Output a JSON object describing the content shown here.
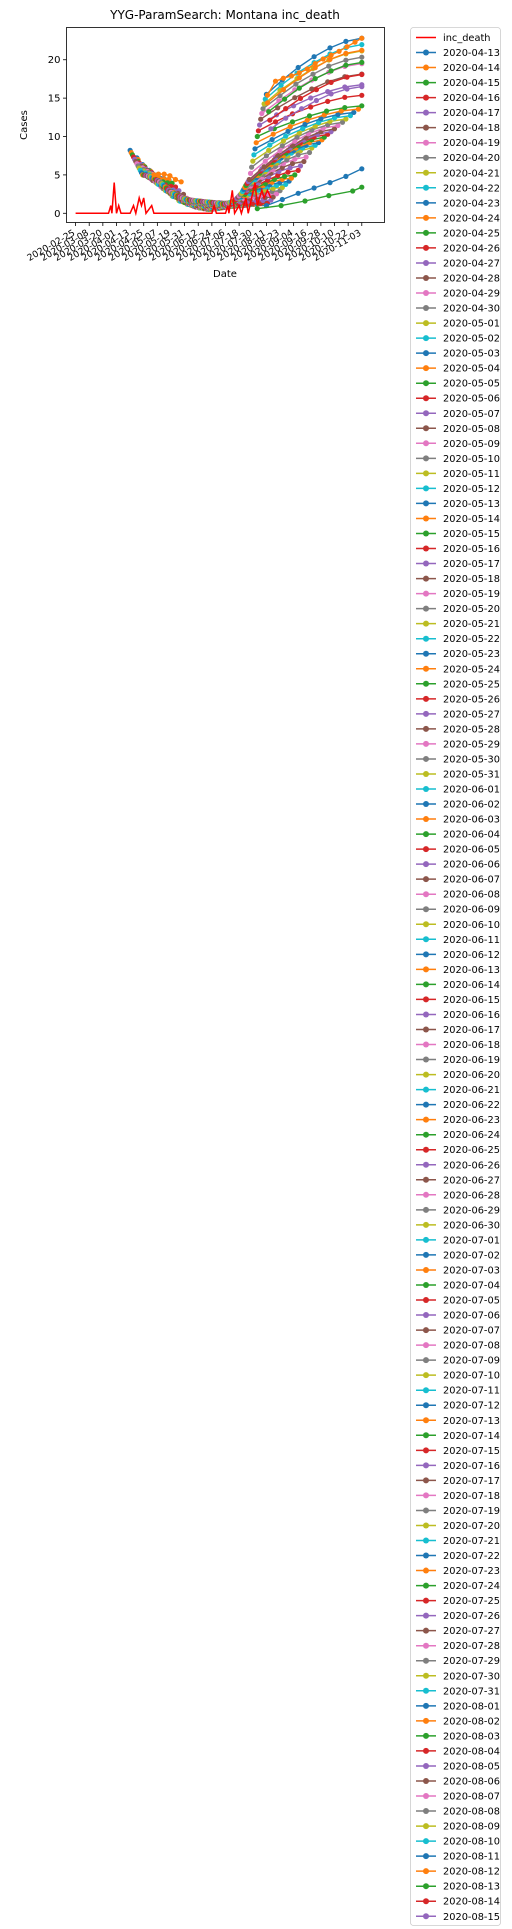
{
  "chart_data": {
    "type": "line",
    "title": "YYG-ParamSearch: Montana inc_death",
    "xlabel": "Date",
    "ylabel": "Cases",
    "ylim": [
      -1.2,
      24.2
    ],
    "yticks": [
      0,
      5,
      10,
      15,
      20
    ],
    "xlim": [
      "2020-02-17",
      "2020-11-23"
    ],
    "xticks": [
      "2020-02-25",
      "2020-03-08",
      "2020-03-20",
      "2020-04-01",
      "2020-04-13",
      "2020-04-25",
      "2020-05-07",
      "2020-05-19",
      "2020-05-31",
      "2020-06-12",
      "2020-06-24",
      "2020-07-06",
      "2020-07-18",
      "2020-07-30",
      "2020-08-11",
      "2020-08-23",
      "2020-09-04",
      "2020-09-16",
      "2020-09-28",
      "2020-10-10",
      "2020-10-22",
      "2020-11-03"
    ],
    "legend_placement": "outside-right",
    "grid": false,
    "palette": [
      "#1f77b4",
      "#ff7f0e",
      "#2ca02c",
      "#d62728",
      "#9467bd",
      "#8c564b",
      "#e377c2",
      "#7f7f7f",
      "#bcbd22",
      "#17becf"
    ],
    "observed": {
      "name": "inc_death",
      "color": "#ff0000",
      "points": [
        [
          "2020-02-25",
          0
        ],
        [
          "2020-03-25",
          0
        ],
        [
          "2020-03-27",
          1
        ],
        [
          "2020-03-28",
          0
        ],
        [
          "2020-03-30",
          4
        ],
        [
          "2020-04-01",
          0
        ],
        [
          "2020-04-03",
          1
        ],
        [
          "2020-04-05",
          0
        ],
        [
          "2020-04-13",
          0
        ],
        [
          "2020-04-16",
          1
        ],
        [
          "2020-04-18",
          0
        ],
        [
          "2020-04-21",
          2
        ],
        [
          "2020-04-23",
          1
        ],
        [
          "2020-04-25",
          2
        ],
        [
          "2020-04-27",
          0
        ],
        [
          "2020-05-02",
          1
        ],
        [
          "2020-05-04",
          0
        ],
        [
          "2020-06-24",
          0
        ],
        [
          "2020-06-26",
          1
        ],
        [
          "2020-06-28",
          0
        ],
        [
          "2020-07-06",
          0
        ],
        [
          "2020-07-08",
          1
        ],
        [
          "2020-07-09",
          0
        ],
        [
          "2020-07-12",
          3
        ],
        [
          "2020-07-14",
          0
        ],
        [
          "2020-07-18",
          1
        ],
        [
          "2020-07-20",
          0
        ],
        [
          "2020-07-24",
          2
        ],
        [
          "2020-07-26",
          0
        ],
        [
          "2020-08-01",
          4
        ],
        [
          "2020-08-03",
          1
        ],
        [
          "2020-08-07",
          3
        ],
        [
          "2020-08-09",
          2
        ],
        [
          "2020-08-12",
          3
        ],
        [
          "2020-08-15",
          2
        ]
      ]
    },
    "forecast_dates": [
      "2020-04-13",
      "2020-04-14",
      "2020-04-15",
      "2020-04-16",
      "2020-04-17",
      "2020-04-18",
      "2020-04-19",
      "2020-04-20",
      "2020-04-21",
      "2020-04-22",
      "2020-04-23",
      "2020-04-24",
      "2020-04-25",
      "2020-04-26",
      "2020-04-27",
      "2020-04-28",
      "2020-04-29",
      "2020-04-30",
      "2020-05-01",
      "2020-05-02",
      "2020-05-03",
      "2020-05-04",
      "2020-05-05",
      "2020-05-06",
      "2020-05-07",
      "2020-05-08",
      "2020-05-09",
      "2020-05-10",
      "2020-05-11",
      "2020-05-12",
      "2020-05-13",
      "2020-05-14",
      "2020-05-15",
      "2020-05-16",
      "2020-05-17",
      "2020-05-18",
      "2020-05-19",
      "2020-05-20",
      "2020-05-21",
      "2020-05-22",
      "2020-05-23",
      "2020-05-24",
      "2020-05-25",
      "2020-05-26",
      "2020-05-27",
      "2020-05-28",
      "2020-05-29",
      "2020-05-30",
      "2020-05-31",
      "2020-06-01",
      "2020-06-02",
      "2020-06-03",
      "2020-06-04",
      "2020-06-05",
      "2020-06-06",
      "2020-06-07",
      "2020-06-08",
      "2020-06-09",
      "2020-06-10",
      "2020-06-11",
      "2020-06-12",
      "2020-06-13",
      "2020-06-14",
      "2020-06-15",
      "2020-06-16",
      "2020-06-17",
      "2020-06-18",
      "2020-06-19",
      "2020-06-20",
      "2020-06-21",
      "2020-06-22",
      "2020-06-23",
      "2020-06-24",
      "2020-06-25",
      "2020-06-26",
      "2020-06-27",
      "2020-06-28",
      "2020-06-29",
      "2020-06-30",
      "2020-07-01",
      "2020-07-02",
      "2020-07-03",
      "2020-07-04",
      "2020-07-05",
      "2020-07-06",
      "2020-07-07",
      "2020-07-08",
      "2020-07-09",
      "2020-07-10",
      "2020-07-11",
      "2020-07-12",
      "2020-07-13",
      "2020-07-14",
      "2020-07-15",
      "2020-07-16",
      "2020-07-17",
      "2020-07-18",
      "2020-07-19",
      "2020-07-20",
      "2020-07-21",
      "2020-07-22",
      "2020-07-23",
      "2020-07-24",
      "2020-07-25",
      "2020-07-26",
      "2020-07-27",
      "2020-07-28",
      "2020-07-29",
      "2020-07-30",
      "2020-07-31",
      "2020-08-01",
      "2020-08-02",
      "2020-08-03",
      "2020-08-04",
      "2020-08-05",
      "2020-08-06",
      "2020-08-07",
      "2020-08-08",
      "2020-08-09",
      "2020-08-10",
      "2020-08-11",
      "2020-08-12",
      "2020-08-13",
      "2020-08-14",
      "2020-08-15"
    ],
    "forecast_anchors": [
      [
        "2020-04-13",
        8.2,
        "2020-05-17",
        4.3
      ],
      [
        "2020-04-24",
        5.0,
        "2020-05-17",
        4.4
      ],
      [
        "2020-05-01",
        4.8,
        "2020-06-08",
        1.0
      ],
      [
        "2020-05-10",
        4.0,
        "2020-06-20",
        0.5
      ],
      [
        "2020-05-20",
        2.6,
        "2020-06-28",
        0.6
      ],
      [
        "2020-06-01",
        1.8,
        "2020-07-10",
        0.9
      ],
      [
        "2020-06-12",
        1.6,
        "2020-07-20",
        1.0
      ],
      [
        "2020-06-25",
        1.4,
        "2020-08-01",
        1.2
      ],
      [
        "2020-07-05",
        1.2,
        "2020-08-12",
        1.3
      ],
      [
        "2020-07-14",
        1.6,
        "2020-09-05",
        5.0
      ],
      [
        "2020-07-20",
        2.6,
        "2020-09-20",
        8.5
      ],
      [
        "2020-07-27",
        4.4,
        "2020-10-10",
        11.0
      ],
      [
        "2020-08-03",
        10.0,
        "2020-11-03",
        14.0
      ],
      [
        "2020-08-07",
        13.0,
        "2020-11-03",
        19.5
      ],
      [
        "2020-08-11",
        15.5,
        "2020-11-03",
        22.8
      ],
      [
        "2020-08-15",
        11.0,
        "2020-11-03",
        16.5
      ]
    ],
    "highlighted_forecasts": [
      {
        "date": "2020-08-12",
        "points": [
          [
            "2020-08-12",
            15.4
          ],
          [
            "2020-08-19",
            17.2
          ],
          [
            "2020-08-26",
            17.6
          ],
          [
            "2020-09-02",
            17.9
          ],
          [
            "2020-09-09",
            18.3
          ],
          [
            "2020-09-16",
            18.8
          ],
          [
            "2020-09-23",
            19.5
          ],
          [
            "2020-09-30",
            20.1
          ],
          [
            "2020-10-07",
            20.6
          ],
          [
            "2020-10-14",
            21.1
          ],
          [
            "2020-10-21",
            21.7
          ],
          [
            "2020-10-28",
            22.3
          ],
          [
            "2020-11-03",
            22.8
          ]
        ]
      },
      {
        "date": "2020-08-11",
        "points": [
          [
            "2020-08-11",
            1.0
          ],
          [
            "2020-08-25",
            1.8
          ],
          [
            "2020-09-08",
            2.6
          ],
          [
            "2020-09-22",
            3.3
          ],
          [
            "2020-10-06",
            4.0
          ],
          [
            "2020-10-20",
            4.8
          ],
          [
            "2020-11-03",
            5.8
          ]
        ]
      },
      {
        "date": "2020-08-03",
        "points": [
          [
            "2020-08-03",
            0.6
          ],
          [
            "2020-08-24",
            1.0
          ],
          [
            "2020-09-14",
            1.6
          ],
          [
            "2020-10-05",
            2.3
          ],
          [
            "2020-10-26",
            2.9
          ],
          [
            "2020-11-03",
            3.4
          ]
        ]
      },
      {
        "date": "2020-05-04",
        "points": [
          [
            "2020-05-04",
            5.0
          ],
          [
            "2020-05-08",
            5.1
          ],
          [
            "2020-05-13",
            5.1
          ],
          [
            "2020-05-18",
            4.9
          ],
          [
            "2020-05-23",
            4.4
          ],
          [
            "2020-05-28",
            4.1
          ]
        ]
      }
    ]
  }
}
